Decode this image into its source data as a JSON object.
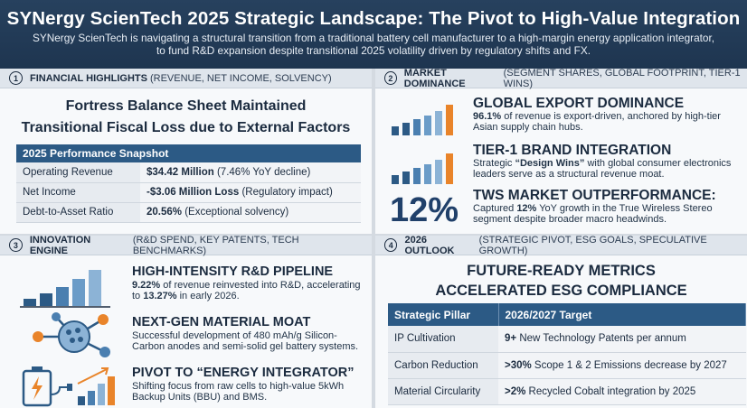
{
  "header": {
    "title": "SYNergy ScienTech 2025 Strategic Landscape: The Pivot to High-Value Integration",
    "subtitle": "SYNergy ScienTech is navigating a structural transition from a traditional battery cell manufacturer to a high-margin energy application integrator, to fund R&D expansion despite transitional 2025 volatility driven by regulatory shifts and FX."
  },
  "panel1": {
    "num": "1",
    "label": "FINANCIAL HIGHLIGHTS",
    "sub": "(REVENUE, NET INCOME, SOLVENCY)",
    "title_line1": "Fortress Balance Sheet Maintained",
    "title_line2": "Transitional Fiscal Loss due to External Factors",
    "table_header": "2025 Performance Snapshot",
    "rows": [
      {
        "label": "Operating Revenue",
        "value_bold": "$34.42 Million",
        "value_rest": " (7.46% YoY decline)"
      },
      {
        "label": "Net Income",
        "value_bold": "-$3.06 Million Loss",
        "value_rest": " (Regulatory impact)"
      },
      {
        "label": "Debt-to-Asset Ratio",
        "value_bold": "20.56%",
        "value_rest": " (Exceptional solvency)"
      }
    ]
  },
  "panel2": {
    "num": "2",
    "label": "MARKET DOMINANCE",
    "sub": "(SEGMENT SHARES, GLOBAL FOOTPRINT, TIER-1 WINS)",
    "items": [
      {
        "title": "GLOBAL EXPORT DOMINANCE",
        "bold": "96.1%",
        "text": " of revenue is export-driven, anchored by high-tier Asian supply chain hubs."
      },
      {
        "title": "TIER-1 BRAND INTEGRATION",
        "pre": "Strategic ",
        "bold": "“Design Wins”",
        "text": " with global consumer electronics leaders serve as a structural revenue moat."
      },
      {
        "big": "12%",
        "title": "TWS MARKET OUTPERFORMANCE:",
        "pre": "Captured ",
        "bold": "12%",
        "text": " YoY growth in the True Wireless Stereo segment despite broader macro headwinds."
      }
    ]
  },
  "panel3": {
    "num": "3",
    "label": "INNOVATION ENGINE",
    "sub": "(R&D SPEND, KEY PATENTS, TECH BENCHMARKS)",
    "items": [
      {
        "title": "HIGH-INTENSITY R&D PIPELINE",
        "bold1": "9.22%",
        "text1": " of revenue reinvested into R&D, accelerating to ",
        "bold2": "13.27%",
        "text2": " in early 2026."
      },
      {
        "title": "NEXT-GEN MATERIAL MOAT",
        "text": "Successful development of 480 mAh/g Silicon-Carbon anodes and semi-solid gel battery systems."
      },
      {
        "title": "PIVOT TO “ENERGY INTEGRATOR”",
        "text": "Shifting focus from raw cells to high-value 5kWh Backup Units (BBU) and BMS."
      }
    ]
  },
  "panel4": {
    "num": "4",
    "label": "2026 OUTLOOK",
    "sub": "(STRATEGIC PIVOT, ESG GOALS, SPECULATIVE GROWTH)",
    "title_line1": "FUTURE-READY METRICS",
    "title_line2": "ACCELERATED ESG COMPLIANCE",
    "col1": "Strategic Pillar",
    "col2": "2026/2027 Target",
    "rows": [
      {
        "label": "IP Cultivation",
        "bold": "9+",
        "rest": " New Technology Patents per annum"
      },
      {
        "label": "Carbon Reduction",
        "bold": ">30%",
        "rest": " Scope 1 & 2 Emissions decrease by 2027"
      },
      {
        "label": "Material Circularity",
        "bold": ">2%",
        "rest": " Recycled Cobalt integration by 2025"
      }
    ]
  },
  "colors": {
    "navy": "#1e3550",
    "blue": "#2c5a85",
    "orange": "#e9842a",
    "light": "#8cb3d6"
  },
  "icons": [
    "bar-growth-icon",
    "molecule-icon",
    "battery-plug-icon"
  ]
}
